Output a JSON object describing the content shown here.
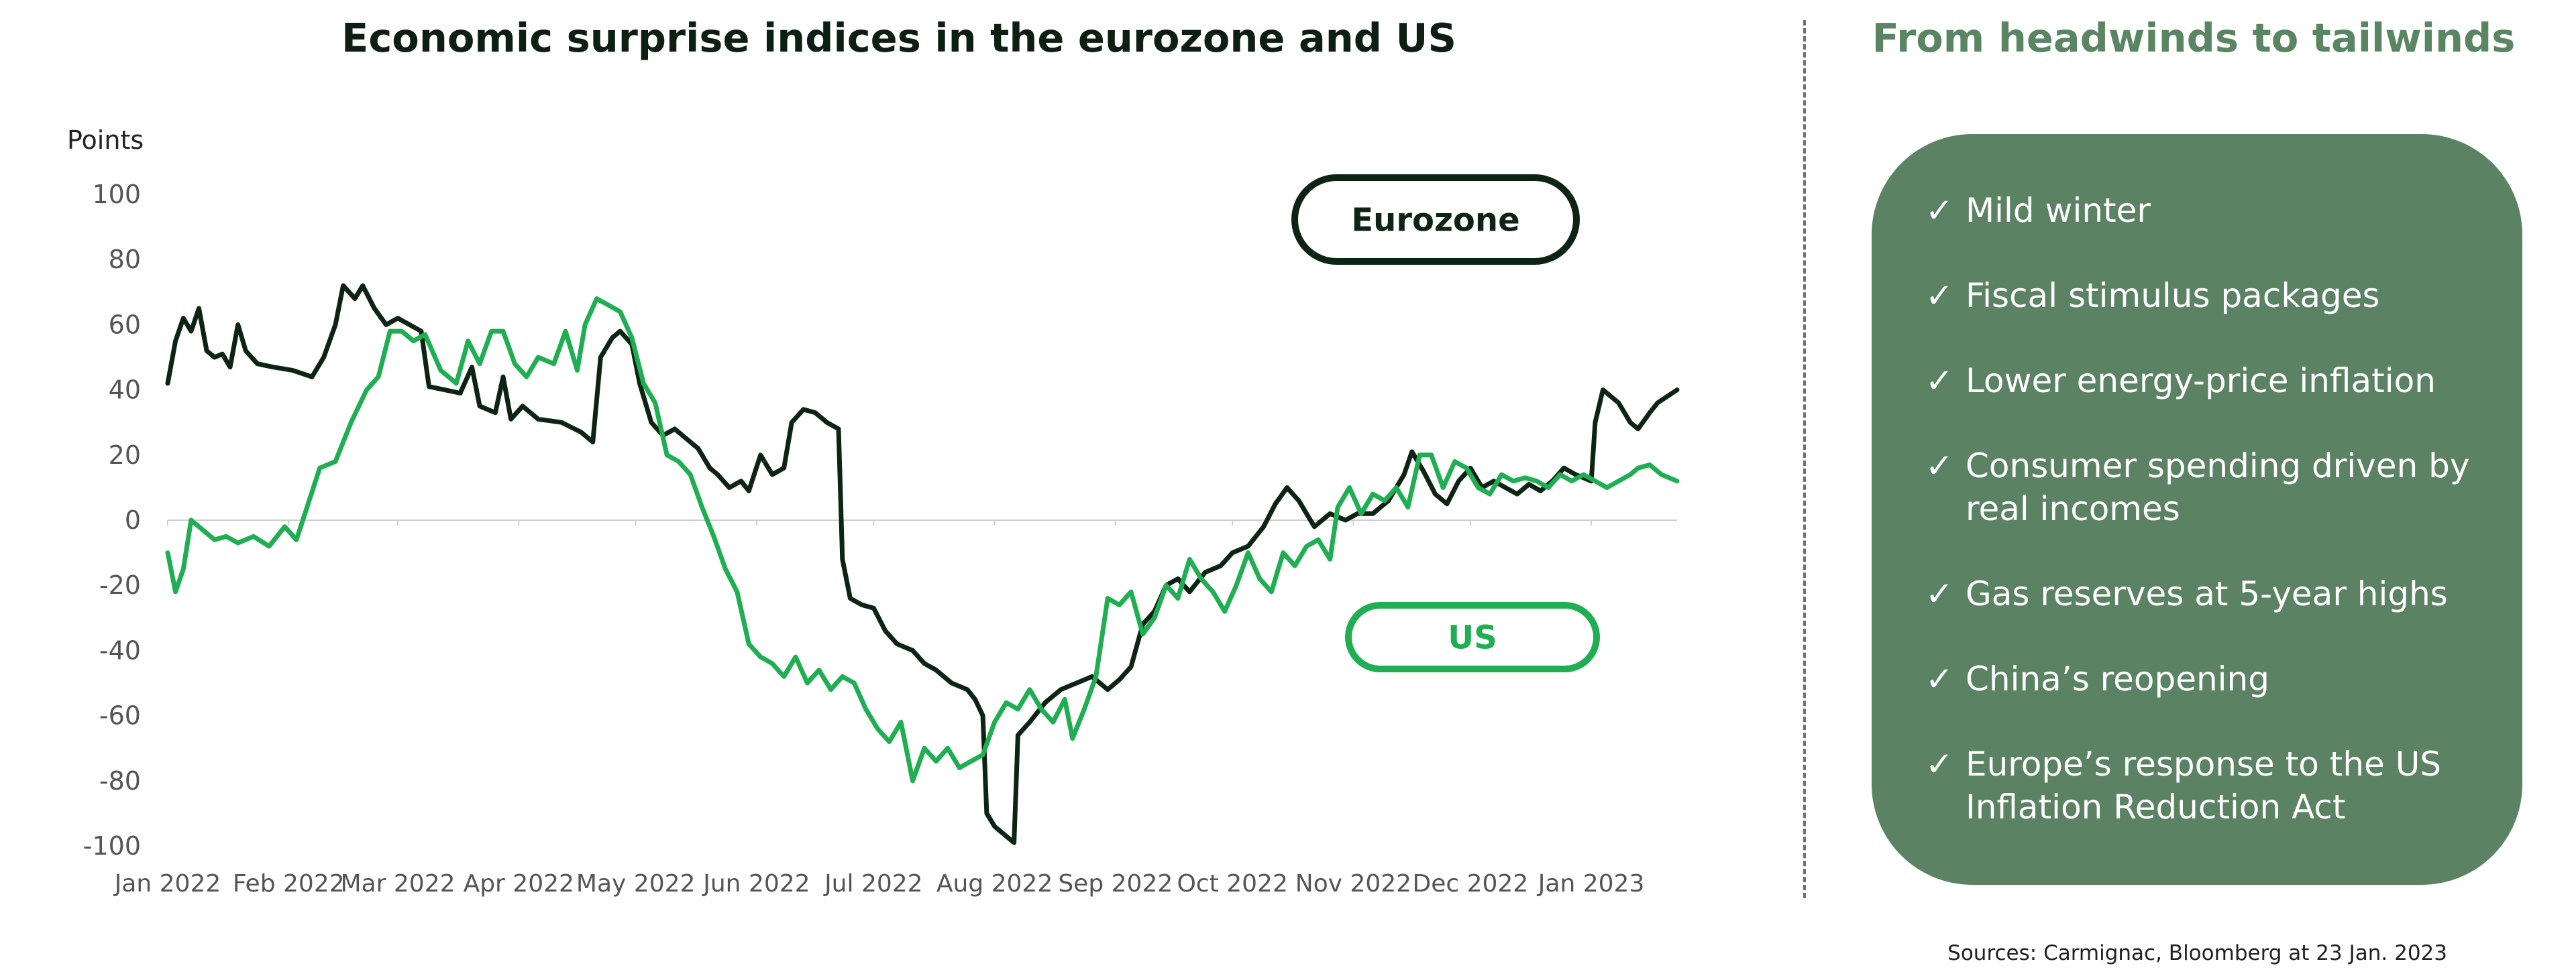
{
  "chart_data": {
    "type": "line",
    "title": "Economic surprise indices in the eurozone and US",
    "ylabel": "Points",
    "xlabel": "",
    "ylim": [
      -100,
      100
    ],
    "yticks": [
      100,
      80,
      60,
      40,
      20,
      0,
      -20,
      -40,
      -60,
      -80,
      -100
    ],
    "xlim": [
      "2022-01-01",
      "2023-01-23"
    ],
    "xticks": [
      {
        "date": "2022-01-01",
        "label": "Jan 2022"
      },
      {
        "date": "2022-02-01",
        "label": "Feb 2022"
      },
      {
        "date": "2022-03-01",
        "label": "Mar 2022"
      },
      {
        "date": "2022-04-01",
        "label": "Apr 2022"
      },
      {
        "date": "2022-05-01",
        "label": "May 2022"
      },
      {
        "date": "2022-06-01",
        "label": "Jun 2022"
      },
      {
        "date": "2022-07-01",
        "label": "Jul 2022"
      },
      {
        "date": "2022-08-01",
        "label": "Aug 2022"
      },
      {
        "date": "2022-09-01",
        "label": "Sep 2022"
      },
      {
        "date": "2022-10-01",
        "label": "Oct 2022"
      },
      {
        "date": "2022-11-01",
        "label": "Nov 2022"
      },
      {
        "date": "2022-12-01",
        "label": "Dec 2022"
      },
      {
        "date": "2023-01-01",
        "label": "Jan 2023"
      }
    ],
    "grid": false,
    "zero_line": true,
    "series": [
      {
        "name": "Eurozone",
        "color": "#0d2414",
        "points": [
          [
            "2022-01-01",
            42
          ],
          [
            "2022-01-03",
            55
          ],
          [
            "2022-01-05",
            62
          ],
          [
            "2022-01-07",
            58
          ],
          [
            "2022-01-09",
            65
          ],
          [
            "2022-01-11",
            52
          ],
          [
            "2022-01-13",
            50
          ],
          [
            "2022-01-15",
            51
          ],
          [
            "2022-01-17",
            47
          ],
          [
            "2022-01-19",
            60
          ],
          [
            "2022-01-21",
            52
          ],
          [
            "2022-01-24",
            48
          ],
          [
            "2022-01-28",
            47
          ],
          [
            "2022-02-02",
            46
          ],
          [
            "2022-02-07",
            44
          ],
          [
            "2022-02-10",
            50
          ],
          [
            "2022-02-13",
            60
          ],
          [
            "2022-02-15",
            72
          ],
          [
            "2022-02-18",
            68
          ],
          [
            "2022-02-20",
            72
          ],
          [
            "2022-02-23",
            65
          ],
          [
            "2022-02-26",
            60
          ],
          [
            "2022-03-01",
            62
          ],
          [
            "2022-03-04",
            60
          ],
          [
            "2022-03-07",
            58
          ],
          [
            "2022-03-09",
            41
          ],
          [
            "2022-03-13",
            40
          ],
          [
            "2022-03-17",
            39
          ],
          [
            "2022-03-20",
            47
          ],
          [
            "2022-03-22",
            35
          ],
          [
            "2022-03-26",
            33
          ],
          [
            "2022-03-28",
            44
          ],
          [
            "2022-03-30",
            31
          ],
          [
            "2022-04-02",
            35
          ],
          [
            "2022-04-06",
            31
          ],
          [
            "2022-04-12",
            30
          ],
          [
            "2022-04-17",
            27
          ],
          [
            "2022-04-20",
            24
          ],
          [
            "2022-04-22",
            50
          ],
          [
            "2022-04-25",
            56
          ],
          [
            "2022-04-27",
            58
          ],
          [
            "2022-04-30",
            54
          ],
          [
            "2022-05-02",
            42
          ],
          [
            "2022-05-05",
            30
          ],
          [
            "2022-05-08",
            26
          ],
          [
            "2022-05-11",
            28
          ],
          [
            "2022-05-14",
            25
          ],
          [
            "2022-05-17",
            22
          ],
          [
            "2022-05-20",
            16
          ],
          [
            "2022-05-22",
            14
          ],
          [
            "2022-05-25",
            10
          ],
          [
            "2022-05-28",
            12
          ],
          [
            "2022-05-30",
            9
          ],
          [
            "2022-06-02",
            20
          ],
          [
            "2022-06-05",
            14
          ],
          [
            "2022-06-08",
            16
          ],
          [
            "2022-06-10",
            30
          ],
          [
            "2022-06-13",
            34
          ],
          [
            "2022-06-16",
            33
          ],
          [
            "2022-06-19",
            30
          ],
          [
            "2022-06-22",
            28
          ],
          [
            "2022-06-23",
            -12
          ],
          [
            "2022-06-25",
            -24
          ],
          [
            "2022-06-28",
            -26
          ],
          [
            "2022-07-01",
            -27
          ],
          [
            "2022-07-04",
            -34
          ],
          [
            "2022-07-07",
            -38
          ],
          [
            "2022-07-11",
            -40
          ],
          [
            "2022-07-14",
            -44
          ],
          [
            "2022-07-17",
            -46
          ],
          [
            "2022-07-21",
            -50
          ],
          [
            "2022-07-25",
            -52
          ],
          [
            "2022-07-27",
            -55
          ],
          [
            "2022-07-29",
            -60
          ],
          [
            "2022-07-30",
            -90
          ],
          [
            "2022-08-01",
            -94
          ],
          [
            "2022-08-04",
            -97
          ],
          [
            "2022-08-06",
            -99
          ],
          [
            "2022-08-07",
            -66
          ],
          [
            "2022-08-10",
            -62
          ],
          [
            "2022-08-14",
            -56
          ],
          [
            "2022-08-18",
            -52
          ],
          [
            "2022-08-22",
            -50
          ],
          [
            "2022-08-26",
            -48
          ],
          [
            "2022-08-30",
            -52
          ],
          [
            "2022-09-02",
            -49
          ],
          [
            "2022-09-05",
            -45
          ],
          [
            "2022-09-08",
            -32
          ],
          [
            "2022-09-11",
            -28
          ],
          [
            "2022-09-14",
            -20
          ],
          [
            "2022-09-17",
            -18
          ],
          [
            "2022-09-20",
            -22
          ],
          [
            "2022-09-24",
            -16
          ],
          [
            "2022-09-28",
            -14
          ],
          [
            "2022-10-01",
            -10
          ],
          [
            "2022-10-05",
            -8
          ],
          [
            "2022-10-09",
            -2
          ],
          [
            "2022-10-12",
            5
          ],
          [
            "2022-10-15",
            10
          ],
          [
            "2022-10-18",
            6
          ],
          [
            "2022-10-22",
            -2
          ],
          [
            "2022-10-26",
            2
          ],
          [
            "2022-10-30",
            0
          ],
          [
            "2022-11-02",
            2
          ],
          [
            "2022-11-06",
            2
          ],
          [
            "2022-11-10",
            6
          ],
          [
            "2022-11-14",
            14
          ],
          [
            "2022-11-16",
            21
          ],
          [
            "2022-11-19",
            15
          ],
          [
            "2022-11-22",
            8
          ],
          [
            "2022-11-25",
            5
          ],
          [
            "2022-11-28",
            12
          ],
          [
            "2022-12-01",
            16
          ],
          [
            "2022-12-04",
            10
          ],
          [
            "2022-12-07",
            12
          ],
          [
            "2022-12-10",
            10
          ],
          [
            "2022-12-13",
            8
          ],
          [
            "2022-12-16",
            11
          ],
          [
            "2022-12-19",
            9
          ],
          [
            "2022-12-22",
            12
          ],
          [
            "2022-12-25",
            16
          ],
          [
            "2022-12-28",
            14
          ],
          [
            "2022-12-30",
            13
          ],
          [
            "2023-01-01",
            12
          ],
          [
            "2023-01-02",
            30
          ],
          [
            "2023-01-04",
            40
          ],
          [
            "2023-01-06",
            38
          ],
          [
            "2023-01-08",
            36
          ],
          [
            "2023-01-11",
            30
          ],
          [
            "2023-01-13",
            28
          ],
          [
            "2023-01-16",
            33
          ],
          [
            "2023-01-18",
            36
          ],
          [
            "2023-01-23",
            40
          ]
        ]
      },
      {
        "name": "US",
        "color": "#1faf52",
        "points": [
          [
            "2022-01-01",
            -10
          ],
          [
            "2022-01-03",
            -22
          ],
          [
            "2022-01-05",
            -15
          ],
          [
            "2022-01-07",
            0
          ],
          [
            "2022-01-10",
            -3
          ],
          [
            "2022-01-13",
            -6
          ],
          [
            "2022-01-16",
            -5
          ],
          [
            "2022-01-19",
            -7
          ],
          [
            "2022-01-23",
            -5
          ],
          [
            "2022-01-27",
            -8
          ],
          [
            "2022-01-31",
            -2
          ],
          [
            "2022-02-03",
            -6
          ],
          [
            "2022-02-06",
            5
          ],
          [
            "2022-02-09",
            16
          ],
          [
            "2022-02-13",
            18
          ],
          [
            "2022-02-17",
            30
          ],
          [
            "2022-02-21",
            40
          ],
          [
            "2022-02-24",
            44
          ],
          [
            "2022-02-27",
            58
          ],
          [
            "2022-03-02",
            58
          ],
          [
            "2022-03-05",
            55
          ],
          [
            "2022-03-08",
            57
          ],
          [
            "2022-03-12",
            46
          ],
          [
            "2022-03-16",
            42
          ],
          [
            "2022-03-19",
            55
          ],
          [
            "2022-03-22",
            48
          ],
          [
            "2022-03-25",
            58
          ],
          [
            "2022-03-28",
            58
          ],
          [
            "2022-03-31",
            48
          ],
          [
            "2022-04-03",
            44
          ],
          [
            "2022-04-06",
            50
          ],
          [
            "2022-04-10",
            48
          ],
          [
            "2022-04-13",
            58
          ],
          [
            "2022-04-16",
            46
          ],
          [
            "2022-04-18",
            60
          ],
          [
            "2022-04-21",
            68
          ],
          [
            "2022-04-24",
            66
          ],
          [
            "2022-04-27",
            64
          ],
          [
            "2022-04-30",
            56
          ],
          [
            "2022-05-03",
            42
          ],
          [
            "2022-05-06",
            36
          ],
          [
            "2022-05-09",
            20
          ],
          [
            "2022-05-12",
            18
          ],
          [
            "2022-05-15",
            14
          ],
          [
            "2022-05-18",
            4
          ],
          [
            "2022-05-21",
            -5
          ],
          [
            "2022-05-24",
            -15
          ],
          [
            "2022-05-27",
            -22
          ],
          [
            "2022-05-30",
            -38
          ],
          [
            "2022-06-02",
            -42
          ],
          [
            "2022-06-05",
            -44
          ],
          [
            "2022-06-08",
            -48
          ],
          [
            "2022-06-11",
            -42
          ],
          [
            "2022-06-14",
            -50
          ],
          [
            "2022-06-17",
            -46
          ],
          [
            "2022-06-20",
            -52
          ],
          [
            "2022-06-23",
            -48
          ],
          [
            "2022-06-26",
            -50
          ],
          [
            "2022-06-29",
            -58
          ],
          [
            "2022-07-02",
            -64
          ],
          [
            "2022-07-05",
            -68
          ],
          [
            "2022-07-08",
            -62
          ],
          [
            "2022-07-11",
            -80
          ],
          [
            "2022-07-14",
            -70
          ],
          [
            "2022-07-17",
            -74
          ],
          [
            "2022-07-20",
            -70
          ],
          [
            "2022-07-23",
            -76
          ],
          [
            "2022-07-26",
            -74
          ],
          [
            "2022-07-29",
            -72
          ],
          [
            "2022-08-01",
            -62
          ],
          [
            "2022-08-04",
            -56
          ],
          [
            "2022-08-07",
            -58
          ],
          [
            "2022-08-10",
            -52
          ],
          [
            "2022-08-13",
            -58
          ],
          [
            "2022-08-16",
            -62
          ],
          [
            "2022-08-19",
            -55
          ],
          [
            "2022-08-21",
            -67
          ],
          [
            "2022-08-24",
            -58
          ],
          [
            "2022-08-27",
            -48
          ],
          [
            "2022-08-30",
            -24
          ],
          [
            "2022-09-02",
            -26
          ],
          [
            "2022-09-05",
            -22
          ],
          [
            "2022-09-08",
            -35
          ],
          [
            "2022-09-11",
            -30
          ],
          [
            "2022-09-14",
            -20
          ],
          [
            "2022-09-17",
            -24
          ],
          [
            "2022-09-20",
            -12
          ],
          [
            "2022-09-23",
            -18
          ],
          [
            "2022-09-26",
            -22
          ],
          [
            "2022-09-29",
            -28
          ],
          [
            "2022-10-02",
            -20
          ],
          [
            "2022-10-05",
            -10
          ],
          [
            "2022-10-08",
            -18
          ],
          [
            "2022-10-11",
            -22
          ],
          [
            "2022-10-14",
            -10
          ],
          [
            "2022-10-17",
            -14
          ],
          [
            "2022-10-20",
            -8
          ],
          [
            "2022-10-23",
            -6
          ],
          [
            "2022-10-26",
            -12
          ],
          [
            "2022-10-28",
            4
          ],
          [
            "2022-10-31",
            10
          ],
          [
            "2022-11-03",
            2
          ],
          [
            "2022-11-06",
            8
          ],
          [
            "2022-11-09",
            6
          ],
          [
            "2022-11-12",
            10
          ],
          [
            "2022-11-15",
            4
          ],
          [
            "2022-11-18",
            20
          ],
          [
            "2022-11-21",
            20
          ],
          [
            "2022-11-24",
            10
          ],
          [
            "2022-11-27",
            18
          ],
          [
            "2022-11-30",
            16
          ],
          [
            "2022-12-03",
            10
          ],
          [
            "2022-12-06",
            8
          ],
          [
            "2022-12-09",
            14
          ],
          [
            "2022-12-12",
            12
          ],
          [
            "2022-12-15",
            13
          ],
          [
            "2022-12-18",
            12
          ],
          [
            "2022-12-21",
            10
          ],
          [
            "2022-12-24",
            14
          ],
          [
            "2022-12-27",
            12
          ],
          [
            "2022-12-30",
            14
          ],
          [
            "2023-01-02",
            12
          ],
          [
            "2023-01-05",
            10
          ],
          [
            "2023-01-08",
            12
          ],
          [
            "2023-01-11",
            14
          ],
          [
            "2023-01-13",
            16
          ],
          [
            "2023-01-16",
            17
          ],
          [
            "2023-01-19",
            14
          ],
          [
            "2023-01-23",
            12
          ]
        ]
      }
    ],
    "annotations": [
      {
        "label": "Eurozone",
        "series": "Eurozone"
      },
      {
        "label": "US",
        "series": "US"
      }
    ]
  },
  "panel": {
    "title": "From headwinds to tailwinds",
    "items": [
      "Mild winter",
      "Fiscal stimulus packages",
      "Lower energy-price inflation",
      "Consumer spending driven by real incomes",
      "Gas reserves at 5-year highs",
      "China’s reopening",
      "Europe’s response to the US Inflation Reduction Act"
    ],
    "check_glyph": "✓"
  },
  "sources": "Sources: Carmignac, Bloomberg at 23 Jan. 2023"
}
